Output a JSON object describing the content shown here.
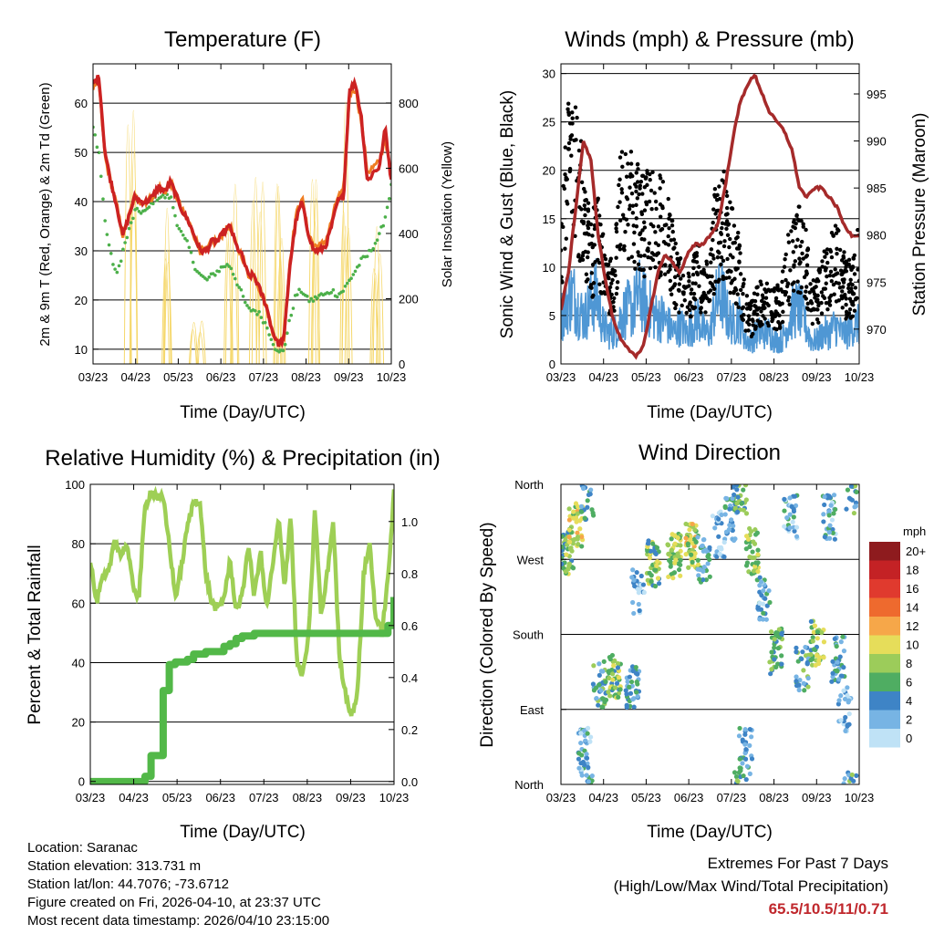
{
  "footer": {
    "location": "Location: Saranac",
    "elevation": "Station elevation: 313.731 m",
    "latlon": "Station lat/lon: 44.7076; -73.6712",
    "created": "Figure created on Fri, 2026-04-10, at 23:37 UTC",
    "recent": "Most recent data timestamp: 2026/04/10 23:15:00"
  },
  "extremes": {
    "title": "Extremes For Past 7 Days",
    "subtitle": "(High/Low/Max Wind/Total Precipitation)",
    "values": "65.5/10.5/11/0.71"
  },
  "colors": {
    "temp2m": "#cc2222",
    "temp9m": "#ef7d22",
    "dewpoint": "#4cb04a",
    "solar": "#f5d76a",
    "wind": "#4f97d4",
    "gust": "#000000",
    "pressure": "#a52a2a",
    "rh": "#9ecf55",
    "precip": "#52b848"
  },
  "chart_data": [
    {
      "type": "line",
      "title": "Temperature (F)",
      "xlabel": "Time (Day/UTC)",
      "ylabel": "2m & 9m T (Red, Orange) & 2m Td (Green)",
      "y2label": "Solar Insolation (Yellow)",
      "xticks": [
        "03/23",
        "04/23",
        "05/23",
        "06/23",
        "07/23",
        "08/23",
        "09/23",
        "10/23"
      ],
      "ylim": [
        7,
        68
      ],
      "yticks": [
        10,
        20,
        30,
        40,
        50,
        60
      ],
      "y2lim": [
        0,
        920
      ],
      "y2ticks": [
        0,
        200,
        400,
        600,
        800
      ],
      "series": [
        {
          "name": "2m Temperature",
          "color": "red",
          "values": [
            64,
            65.5,
            50,
            44,
            39,
            33,
            37,
            41,
            40,
            40,
            41,
            43,
            42,
            44,
            41,
            38,
            36,
            33,
            30,
            30,
            32,
            32,
            34,
            35,
            31,
            29,
            25,
            25,
            22,
            19,
            14,
            11,
            12,
            27,
            36,
            40,
            34,
            30,
            30,
            31,
            35,
            40,
            41,
            63,
            64,
            57,
            44,
            46,
            47,
            55,
            44
          ]
        },
        {
          "name": "9m Temperature",
          "color": "orange",
          "values": [
            63,
            64,
            49,
            44,
            39,
            33,
            37,
            41,
            40,
            40,
            41,
            43,
            42,
            44,
            41,
            38,
            36,
            33,
            30,
            30,
            32,
            32,
            34,
            35,
            31,
            29,
            25,
            25,
            22,
            19,
            14,
            11,
            12,
            28,
            37,
            41,
            34,
            31,
            31,
            32,
            36,
            41,
            42,
            62,
            63,
            56,
            46,
            47,
            48,
            53,
            45
          ]
        },
        {
          "name": "2m Dew Point",
          "color": "green",
          "values": [
            55,
            50,
            36,
            29,
            25,
            30,
            34,
            38,
            38,
            38,
            40,
            41,
            41,
            41,
            36,
            33,
            31,
            27,
            25,
            24,
            25,
            26,
            27,
            27,
            24,
            21,
            18,
            18,
            17,
            15,
            12,
            9,
            10,
            16,
            21,
            22,
            20,
            20,
            21,
            21,
            22,
            21,
            22,
            24,
            26,
            28,
            29,
            31,
            33,
            37,
            43
          ]
        },
        {
          "name": "Solar Insolation",
          "color": "yellow",
          "axis": "right",
          "peaks": [
            [
              0.13,
              820
            ],
            [
              0.24,
              550
            ],
            [
              0.35,
              150
            ],
            [
              0.46,
              620
            ],
            [
              0.55,
              800
            ],
            [
              0.62,
              620
            ],
            [
              0.74,
              850
            ],
            [
              0.85,
              870
            ],
            [
              0.95,
              480
            ]
          ]
        }
      ]
    },
    {
      "type": "line",
      "title": "Winds (mph) & Pressure (mb)",
      "xlabel": "Time (Day/UTC)",
      "ylabel": "Sonic Wind & Gust (Blue, Black)",
      "y2label": "Station Pressure (Maroon)",
      "xticks": [
        "03/23",
        "04/23",
        "05/23",
        "06/23",
        "07/23",
        "08/23",
        "09/23",
        "10/23"
      ],
      "ylim": [
        0,
        31
      ],
      "yticks": [
        0,
        5,
        10,
        15,
        20,
        25,
        30
      ],
      "y2lim": [
        966.3,
        998.2
      ],
      "y2ticks": [
        970,
        975,
        980,
        985,
        990,
        995
      ],
      "series": [
        {
          "name": "Sonic Wind",
          "color": "blue",
          "values": [
            6,
            8,
            9,
            7,
            6,
            8,
            9,
            5,
            4,
            4,
            6,
            7,
            7,
            9,
            8,
            7,
            6,
            6,
            5,
            4,
            5,
            4,
            5,
            6,
            4,
            4,
            8,
            9,
            6,
            5,
            6,
            3,
            3,
            4,
            4,
            4,
            3,
            3,
            5,
            7,
            7,
            5,
            3,
            3,
            4,
            4,
            5,
            4,
            4,
            5,
            5
          ]
        },
        {
          "name": "Gust",
          "color": "black",
          "values": [
            13,
            22,
            21,
            20,
            15,
            12,
            14,
            11,
            8,
            9,
            17,
            18,
            17,
            16,
            15,
            16,
            15,
            17,
            15,
            10,
            9,
            7,
            8,
            10,
            8,
            9,
            15,
            16,
            14,
            12,
            10,
            6,
            5,
            7,
            6,
            7,
            6,
            7,
            10,
            13,
            13,
            11,
            7,
            7,
            9,
            10,
            12,
            10,
            8,
            9,
            13
          ]
        },
        {
          "name": "Station Pressure",
          "color": "maroon",
          "axis": "right",
          "values": [
            972,
            976,
            983,
            990,
            988,
            980,
            975,
            971,
            969,
            968,
            967,
            968,
            972,
            976,
            978,
            977,
            976,
            978,
            979,
            979,
            980,
            981,
            985,
            990,
            994,
            996,
            997,
            995,
            993,
            992,
            991,
            989,
            985,
            984,
            985,
            985,
            984,
            983,
            981,
            980,
            980
          ]
        }
      ]
    },
    {
      "type": "line",
      "title": "Relative Humidity (%) & Precipitation (in)",
      "xlabel": "Time (Day/UTC)",
      "ylabel": "Percent & Total Rainfall",
      "xticks": [
        "03/23",
        "04/23",
        "05/23",
        "06/23",
        "07/23",
        "08/23",
        "09/23",
        "10/23"
      ],
      "ylim": [
        -1,
        100
      ],
      "yticks": [
        0,
        20,
        40,
        60,
        80,
        100
      ],
      "y2lim": [
        -0.011,
        1.143
      ],
      "y2ticks": [
        0.0,
        0.2,
        0.4,
        0.6,
        0.8,
        1.0
      ],
      "series": [
        {
          "name": "Relative Humidity",
          "color": "light-green",
          "values": [
            75,
            60,
            68,
            70,
            82,
            76,
            80,
            66,
            62,
            92,
            98,
            96,
            95,
            80,
            62,
            72,
            86,
            94,
            95,
            70,
            60,
            58,
            62,
            74,
            58,
            62,
            80,
            62,
            78,
            58,
            72,
            88,
            66,
            90,
            40,
            36,
            50,
            92,
            55,
            70,
            88,
            42,
            30,
            22,
            30,
            70,
            80,
            55,
            50,
            68,
            97
          ]
        },
        {
          "name": "Total Precipitation",
          "color": "green",
          "axis": "right",
          "values": [
            0,
            0,
            0,
            0,
            0,
            0,
            0,
            0,
            0,
            0.02,
            0.1,
            0.1,
            0.35,
            0.45,
            0.46,
            0.46,
            0.47,
            0.49,
            0.49,
            0.5,
            0.5,
            0.5,
            0.52,
            0.53,
            0.55,
            0.56,
            0.56,
            0.57,
            0.57,
            0.57,
            0.57,
            0.57,
            0.57,
            0.57,
            0.57,
            0.57,
            0.57,
            0.57,
            0.57,
            0.57,
            0.57,
            0.57,
            0.57,
            0.57,
            0.57,
            0.57,
            0.57,
            0.57,
            0.57,
            0.6,
            0.71
          ]
        }
      ]
    },
    {
      "type": "scatter",
      "title": "Wind Direction",
      "xlabel": "Time (Day/UTC)",
      "ylabel": "Direction (Colored By Speed)",
      "xticks": [
        "03/23",
        "04/23",
        "05/23",
        "06/23",
        "07/23",
        "08/23",
        "09/23",
        "10/23"
      ],
      "yticks": [
        "North",
        "East",
        "South",
        "West",
        "North"
      ],
      "ylim": [
        0,
        360
      ],
      "legend": {
        "title": "mph",
        "labels": [
          "20+",
          "18",
          "16",
          "14",
          "12",
          "10",
          "8",
          "6",
          "4",
          "2",
          "0"
        ],
        "colors": [
          "#8e1b1e",
          "#c42225",
          "#e03a2e",
          "#ee6a2e",
          "#f6a749",
          "#e6dd5a",
          "#9ccc5a",
          "#4fad62",
          "#3e84c6",
          "#77b4e4",
          "#bfe2f6"
        ]
      },
      "clusters": [
        {
          "t": 0.02,
          "dir": 280,
          "n": 14,
          "spd": 7
        },
        {
          "t": 0.05,
          "dir": 310,
          "n": 14,
          "spd": 9
        },
        {
          "t": 0.09,
          "dir": 345,
          "n": 10,
          "spd": 4
        },
        {
          "t": 0.08,
          "dir": 40,
          "n": 12,
          "spd": 3
        },
        {
          "t": 0.13,
          "dir": 120,
          "n": 12,
          "spd": 5
        },
        {
          "t": 0.18,
          "dir": 130,
          "n": 14,
          "spd": 7
        },
        {
          "t": 0.24,
          "dir": 115,
          "n": 12,
          "spd": 4
        },
        {
          "t": 0.26,
          "dir": 230,
          "n": 8,
          "spd": 2
        },
        {
          "t": 0.31,
          "dir": 265,
          "n": 16,
          "spd": 7
        },
        {
          "t": 0.38,
          "dir": 275,
          "n": 16,
          "spd": 8
        },
        {
          "t": 0.44,
          "dir": 285,
          "n": 16,
          "spd": 9
        },
        {
          "t": 0.48,
          "dir": 270,
          "n": 10,
          "spd": 4
        },
        {
          "t": 0.53,
          "dir": 300,
          "n": 8,
          "spd": 2
        },
        {
          "t": 0.57,
          "dir": 320,
          "n": 12,
          "spd": 4
        },
        {
          "t": 0.6,
          "dir": 350,
          "n": 12,
          "spd": 6
        },
        {
          "t": 0.62,
          "dir": 40,
          "n": 10,
          "spd": 4
        },
        {
          "t": 0.64,
          "dir": 280,
          "n": 12,
          "spd": 8
        },
        {
          "t": 0.68,
          "dir": 225,
          "n": 10,
          "spd": 3
        },
        {
          "t": 0.72,
          "dir": 160,
          "n": 14,
          "spd": 6
        },
        {
          "t": 0.77,
          "dir": 320,
          "n": 10,
          "spd": 3
        },
        {
          "t": 0.81,
          "dir": 140,
          "n": 10,
          "spd": 5
        },
        {
          "t": 0.86,
          "dir": 170,
          "n": 12,
          "spd": 7
        },
        {
          "t": 0.9,
          "dir": 320,
          "n": 12,
          "spd": 3
        },
        {
          "t": 0.93,
          "dir": 150,
          "n": 12,
          "spd": 4
        },
        {
          "t": 0.97,
          "dir": 350,
          "n": 8,
          "spd": 5
        },
        {
          "t": 0.95,
          "dir": 90,
          "n": 8,
          "spd": 2
        }
      ]
    }
  ]
}
